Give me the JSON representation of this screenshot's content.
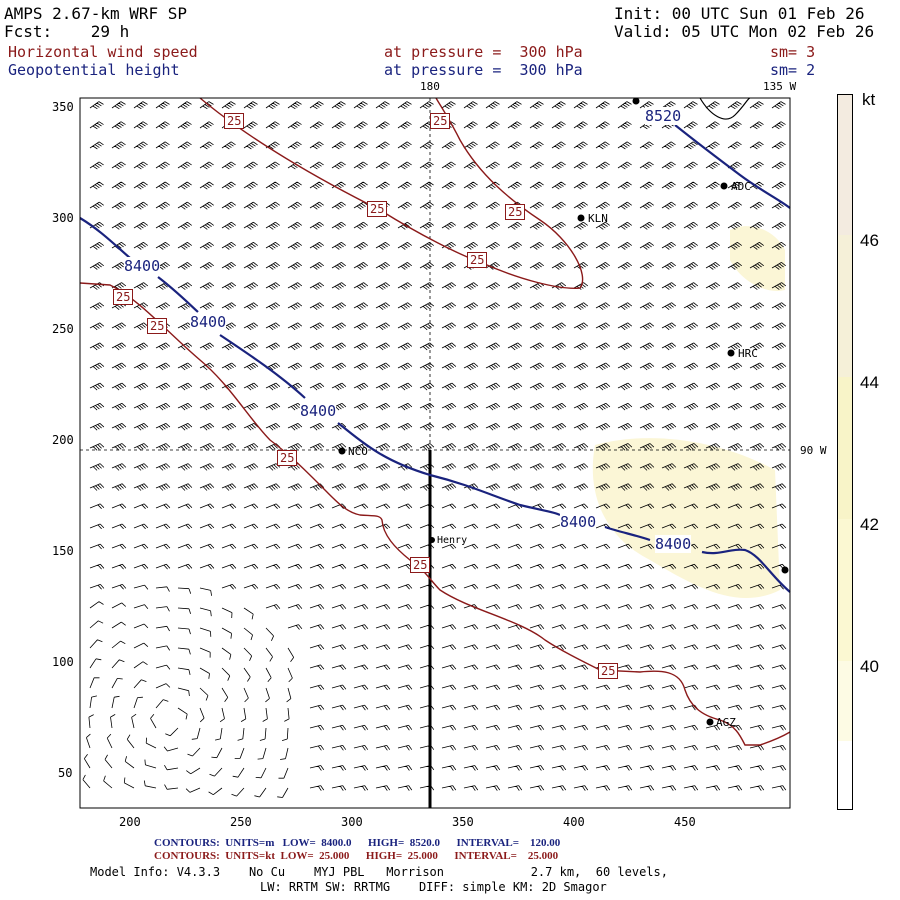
{
  "header": {
    "model": "AMPS 2.67-km WRF SP",
    "fcst": "Fcst:    29 h",
    "init": "Init: 00 UTC Sun 01 Feb 26",
    "valid": "Valid: 05 UTC Mon 02 Feb 26",
    "field1": "Horizontal wind speed",
    "field2": "Geopotential height",
    "level1": "at pressure =  300 hPa",
    "level2": "at pressure =  300 hPa",
    "sm1": "sm= 3",
    "sm2": "sm= 2"
  },
  "map": {
    "meridian_180": "180",
    "meridian_135w": "135 W",
    "meridian_90w": "90 W",
    "y_ticks": [
      "350",
      "300",
      "250",
      "200",
      "150",
      "100",
      "50"
    ],
    "x_ticks": [
      "200",
      "250",
      "300",
      "350",
      "400",
      "450"
    ],
    "height_labels": [
      "8400",
      "8400",
      "8400",
      "8400",
      "8400",
      "8520"
    ],
    "speed_labels": [
      "25",
      "25",
      "25",
      "25",
      "25",
      "25",
      "25",
      "25",
      "25",
      "25"
    ],
    "stations": [
      "ADC",
      "KLN",
      "HRC",
      "NCO",
      "Henry",
      "AGZ"
    ],
    "colors": {
      "height": "#1a237e",
      "speed": "#8b1a1a",
      "shade": "#fdf8dc"
    }
  },
  "colorbar": {
    "unit": "kt",
    "ticks": [
      "46",
      "44",
      "42",
      "40"
    ],
    "colors": [
      "#f3ebe0",
      "#f5f0d8",
      "#f8f4c8",
      "#fbf8d2",
      "#fdfbe4",
      "#ffffff"
    ]
  },
  "footer": {
    "contours_height": "CONTOURS:  UNITS=m   LOW=  8400.0      HIGH=  8520.0      INTERVAL=    120.00",
    "contours_speed": "CONTOURS:  UNITS=kt  LOW=  25.000      HIGH=  25.000      INTERVAL=    25.000",
    "model_info": "Model Info: V4.3.3    No Cu    MYJ PBL   Morrison            2.7 km,  60 levels,",
    "physics": "LW: RRTM SW: RRTMG    DIFF: simple KM: 2D Smagor"
  }
}
